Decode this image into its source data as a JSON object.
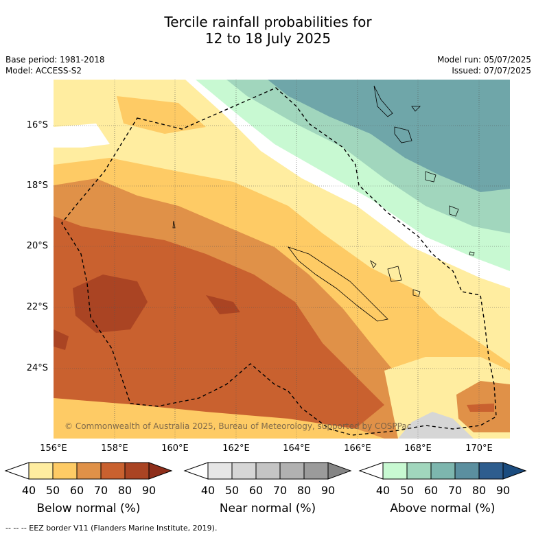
{
  "header": {
    "title_line1": "Tercile rainfall probabilities for",
    "title_line2": "12 to 18 July 2025",
    "base_period": "Base period: 1981-2018",
    "model": "Model: ACCESS-S2",
    "model_run": "Model run: 05/07/2025",
    "issued": "Issued: 07/07/2025"
  },
  "map": {
    "lat_labels": [
      "16°S",
      "18°S",
      "20°S",
      "22°S",
      "24°S"
    ],
    "lon_labels": [
      "156°E",
      "158°E",
      "160°E",
      "162°E",
      "164°E",
      "166°E",
      "168°E",
      "170°E"
    ],
    "credit": "© Commonwealth of Australia 2025, Bureau of Meteorology, supported by COSPPac"
  },
  "colorbars": [
    {
      "title": "Below normal (%)",
      "ticks": [
        "40",
        "50",
        "60",
        "70",
        "80",
        "90"
      ],
      "colors": [
        "#ffffff",
        "#ffeda0",
        "#fecb65",
        "#e09148",
        "#c9612f",
        "#aa4423",
        "#8e2e1a"
      ]
    },
    {
      "title": "Near normal (%)",
      "ticks": [
        "40",
        "50",
        "60",
        "70",
        "80",
        "90"
      ],
      "colors": [
        "#ffffff",
        "#e6e6e6",
        "#d6d6d6",
        "#c4c4c4",
        "#b1b1b1",
        "#9b9b9b",
        "#858585"
      ]
    },
    {
      "title": "Above normal (%)",
      "ticks": [
        "40",
        "50",
        "60",
        "70",
        "80",
        "90"
      ],
      "colors": [
        "#ffffff",
        "#c8f9d2",
        "#a1d6bd",
        "#7db6ae",
        "#5b8f9f",
        "#2e5d8e",
        "#1b4c7f"
      ]
    }
  ],
  "legend": {
    "eez": "--  --  -- EEZ border V11 (Flanders Marine Institute, 2019)."
  }
}
